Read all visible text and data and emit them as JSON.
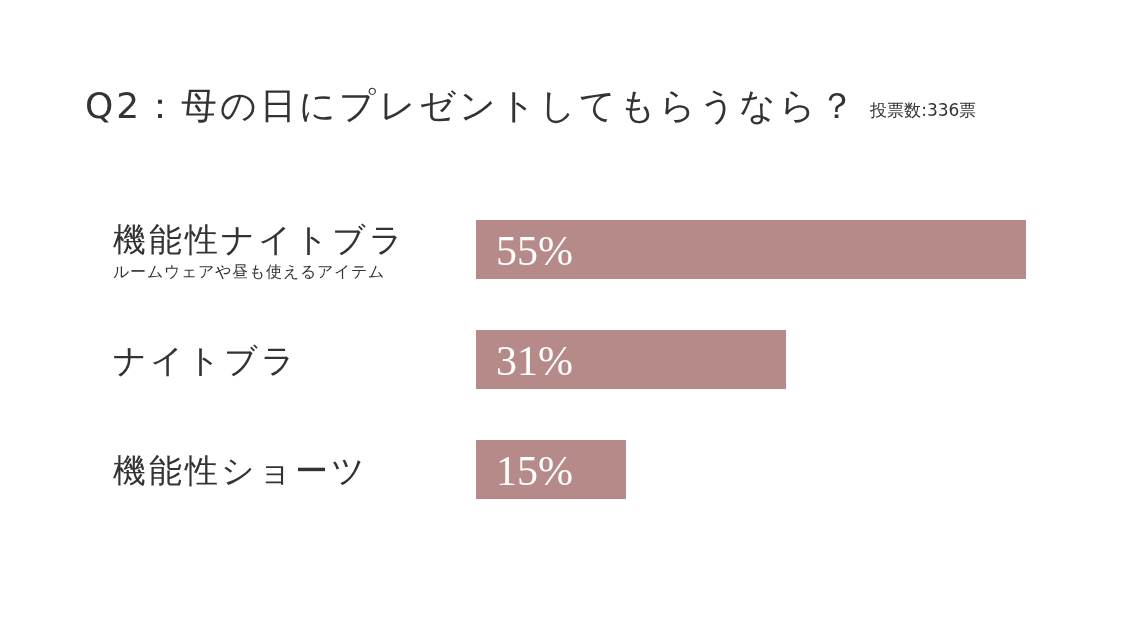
{
  "chart_data": {
    "type": "bar",
    "orientation": "horizontal",
    "title": "Q2：母の日にプレゼントしてもらうなら？",
    "subtitle": "投票数:336票",
    "categories": [
      "機能性ナイトブラ",
      "ナイトブラ",
      "機能性ショーツ"
    ],
    "values": [
      55,
      31,
      15
    ],
    "value_labels": [
      "55%",
      "31%",
      "15%"
    ],
    "color": "#b68a89",
    "annotations": [
      "ルームウェアや昼も使えるアイテム"
    ]
  }
}
